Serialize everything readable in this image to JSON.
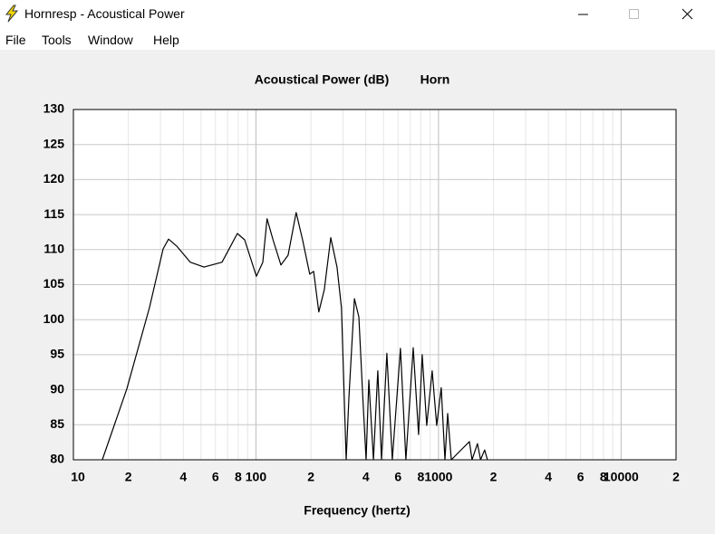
{
  "window": {
    "title": "Hornresp - Acoustical Power",
    "menu": [
      "File",
      "Tools",
      "Window",
      "Help"
    ]
  },
  "chart_data": {
    "type": "line",
    "title": "Acoustical Power (dB)",
    "curve_label": "Horn",
    "xlabel": "Frequency (hertz)",
    "xscale": "log",
    "grid": true,
    "xlim": [
      10,
      20000
    ],
    "ylim": [
      80,
      130
    ],
    "xticks": [
      10,
      {
        "value": 20,
        "label": "2"
      },
      {
        "value": 40,
        "label": "4"
      },
      {
        "value": 60,
        "label": "6"
      },
      {
        "value": 80,
        "label": "8"
      },
      100,
      {
        "value": 200,
        "label": "2"
      },
      {
        "value": 400,
        "label": "4"
      },
      {
        "value": 600,
        "label": "6"
      },
      {
        "value": 800,
        "label": "8"
      },
      1000,
      {
        "value": 2000,
        "label": "2"
      },
      {
        "value": 4000,
        "label": "4"
      },
      {
        "value": 6000,
        "label": "6"
      },
      {
        "value": 8000,
        "label": "8"
      },
      10000,
      {
        "value": 20000,
        "label": "2"
      }
    ],
    "xminor": [
      30,
      50,
      70,
      90,
      300,
      500,
      700,
      900,
      3000,
      5000,
      7000,
      9000
    ],
    "yticks": [
      80,
      85,
      90,
      95,
      100,
      105,
      110,
      115,
      120,
      125,
      130
    ],
    "series": [
      {
        "name": "Horn",
        "color": "#000000",
        "x": [
          14.4,
          19.6,
          26.1,
          31,
          33.2,
          36.8,
          43.7,
          51.9,
          65.2,
          79.1,
          86.7,
          100.5,
          109,
          115,
          124,
          137,
          150,
          166,
          180,
          197,
          207,
          221,
          237,
          257,
          278,
          294,
          312,
          323,
          346,
          366,
          385,
          401,
          415,
          440,
          465,
          487,
          521,
          558,
          619,
          663,
          727,
          778,
          814,
          862,
          923,
          977,
          1035,
          1084,
          1122,
          1175,
          1476,
          1527,
          1634,
          1700,
          1790,
          1853
        ],
        "values": [
          80,
          90.1,
          101.7,
          110.1,
          111.5,
          110.5,
          108.2,
          107.5,
          108.2,
          112.3,
          111.4,
          106.2,
          108.2,
          114.4,
          111.4,
          107.8,
          109.2,
          115.3,
          111.4,
          106.5,
          106.9,
          101.1,
          104.3,
          111.7,
          107.5,
          101.7,
          80,
          88.8,
          103,
          100.4,
          88.8,
          80,
          91.4,
          80,
          92.7,
          80,
          95.2,
          80,
          95.9,
          80,
          96,
          83.6,
          95,
          84.9,
          92.7,
          84.9,
          90.3,
          80,
          86.6,
          80,
          82.6,
          80,
          82.3,
          80,
          81.4,
          80
        ]
      }
    ]
  }
}
